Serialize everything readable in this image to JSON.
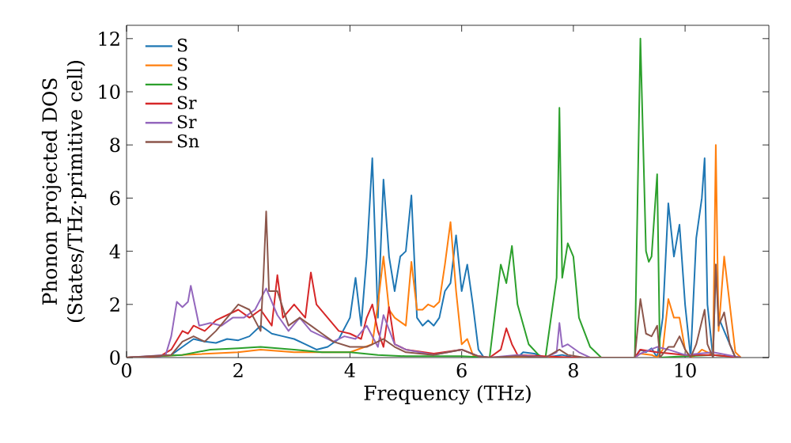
{
  "chart_data": {
    "type": "line",
    "xlabel": "Frequency (THz)",
    "ylabel": "Phonon projected DOS\n(States/THz·primitive cell)",
    "xlim": [
      0,
      11.5
    ],
    "ylim": [
      0,
      12.5
    ],
    "xticks": [
      0,
      2,
      4,
      6,
      8,
      10
    ],
    "yticks": [
      0,
      2,
      4,
      6,
      8,
      10,
      12
    ],
    "grid": false,
    "legend": "top left",
    "series": [
      {
        "name": "S",
        "color": "#1f77b4",
        "x": [
          0,
          0.5,
          0.8,
          1.0,
          1.2,
          1.4,
          1.6,
          1.8,
          2.0,
          2.2,
          2.4,
          2.6,
          2.8,
          3.0,
          3.2,
          3.4,
          3.6,
          3.8,
          4.0,
          4.1,
          4.2,
          4.3,
          4.4,
          4.5,
          4.6,
          4.7,
          4.8,
          4.9,
          5.0,
          5.1,
          5.2,
          5.3,
          5.4,
          5.5,
          5.6,
          5.7,
          5.8,
          5.9,
          6.0,
          6.1,
          6.2,
          6.3,
          6.4,
          7.0,
          7.1,
          7.3,
          7.5,
          7.8,
          8.0,
          9.1,
          9.2,
          9.3,
          9.4,
          9.5,
          9.6,
          9.7,
          9.8,
          9.9,
          10.0,
          10.1,
          10.2,
          10.3,
          10.35,
          10.4,
          10.5,
          10.55,
          10.6,
          10.7,
          10.8,
          10.9,
          11.0
        ],
        "values": [
          0,
          0.02,
          0.1,
          0.4,
          0.7,
          0.6,
          0.55,
          0.7,
          0.65,
          0.8,
          1.2,
          0.9,
          0.8,
          0.7,
          0.5,
          0.3,
          0.4,
          0.7,
          1.5,
          3.0,
          1.2,
          3.8,
          7.5,
          1.5,
          6.7,
          3.8,
          2.5,
          3.8,
          4.0,
          6.1,
          1.5,
          1.2,
          1.4,
          1.2,
          1.5,
          2.5,
          2.8,
          4.6,
          2.5,
          3.5,
          2.0,
          0.3,
          0,
          0,
          0.2,
          0.15,
          0,
          0.1,
          0,
          0,
          0.3,
          0.2,
          0.35,
          0,
          1.5,
          5.8,
          3.8,
          5.0,
          2.0,
          0,
          4.5,
          6.0,
          7.5,
          2.0,
          0,
          3.5,
          1.5,
          1.0,
          0.5,
          0,
          0
        ]
      },
      {
        "name": "S",
        "color": "#ff7f0e",
        "x": [
          0,
          1,
          2,
          2.4,
          3,
          4,
          4.4,
          4.5,
          4.6,
          4.7,
          4.8,
          5.0,
          5.1,
          5.2,
          5.3,
          5.4,
          5.5,
          5.6,
          5.7,
          5.8,
          5.9,
          6.0,
          6.1,
          6.2,
          6.3,
          9.1,
          9.2,
          9.4,
          9.5,
          9.6,
          9.7,
          9.8,
          9.9,
          10.0,
          10.1,
          10.2,
          10.3,
          10.4,
          10.5,
          10.55,
          10.6,
          10.7,
          10.8,
          10.9,
          11.0
        ],
        "values": [
          0,
          0.1,
          0.2,
          0.3,
          0.2,
          0.2,
          0.5,
          2.0,
          3.8,
          1.8,
          1.5,
          1.2,
          3.6,
          1.8,
          1.8,
          2.0,
          1.9,
          2.1,
          3.5,
          5.1,
          2.5,
          0.5,
          0.7,
          0.1,
          0,
          0,
          0.15,
          0.1,
          0,
          0.3,
          2.2,
          1.5,
          1.5,
          0.3,
          0,
          0.1,
          0.3,
          0.2,
          0.1,
          8.0,
          1.0,
          3.8,
          2.0,
          0.2,
          0
        ]
      },
      {
        "name": "S",
        "color": "#2ca02c",
        "x": [
          0,
          1,
          1.5,
          2,
          2.4,
          3,
          3.5,
          4,
          4.5,
          5.0,
          6.0,
          6.5,
          6.7,
          6.8,
          6.9,
          7.0,
          7.2,
          7.4,
          7.5,
          7.7,
          7.75,
          7.8,
          7.9,
          8.0,
          8.1,
          8.3,
          8.5,
          9.1,
          9.2,
          9.3,
          9.35,
          9.4,
          9.5,
          9.55,
          10.0,
          10.5,
          11.0
        ],
        "values": [
          0,
          0.1,
          0.3,
          0.35,
          0.4,
          0.3,
          0.2,
          0.2,
          0.1,
          0.05,
          0.05,
          0,
          3.5,
          2.8,
          4.2,
          2.0,
          0.5,
          0.05,
          0,
          3.0,
          9.4,
          3.0,
          4.3,
          3.8,
          1.5,
          0.4,
          0,
          0,
          12.0,
          4.0,
          3.6,
          3.8,
          6.9,
          0,
          0.05,
          0.1,
          0
        ]
      },
      {
        "name": "Sr",
        "color": "#d62728",
        "x": [
          0,
          0.6,
          0.8,
          1.0,
          1.1,
          1.2,
          1.4,
          1.6,
          1.8,
          2.0,
          2.2,
          2.4,
          2.6,
          2.7,
          2.8,
          3.0,
          3.2,
          3.3,
          3.4,
          3.6,
          3.8,
          4.0,
          4.2,
          4.3,
          4.4,
          4.5,
          4.6,
          4.7,
          4.8,
          5.0,
          5.5,
          6.0,
          6.3,
          6.5,
          6.7,
          6.8,
          6.9,
          7.0,
          7.5,
          8.0,
          9.1,
          9.2,
          9.5,
          10,
          10.5,
          11.0
        ],
        "values": [
          0,
          0.05,
          0.3,
          1.0,
          0.9,
          1.2,
          1.0,
          1.4,
          1.6,
          1.8,
          1.5,
          1.8,
          1.2,
          3.1,
          1.5,
          2.0,
          1.5,
          3.2,
          2.0,
          1.5,
          1.0,
          0.9,
          0.7,
          1.5,
          2.0,
          1.0,
          0.4,
          1.9,
          0.5,
          0.3,
          0.15,
          0.3,
          0.05,
          0,
          0.3,
          1.1,
          0.5,
          0.1,
          0.05,
          0,
          0,
          0.3,
          0.2,
          0.1,
          0.1,
          0
        ]
      },
      {
        "name": "Sr",
        "color": "#9467bd",
        "x": [
          0,
          0.7,
          0.8,
          0.9,
          1.0,
          1.1,
          1.15,
          1.3,
          1.5,
          1.7,
          1.9,
          2.1,
          2.3,
          2.5,
          2.7,
          2.9,
          3.1,
          3.3,
          3.5,
          3.7,
          3.9,
          4.1,
          4.3,
          4.5,
          4.6,
          4.8,
          5.0,
          5.5,
          6.0,
          6.3,
          6.5,
          7.0,
          7.5,
          7.7,
          7.75,
          7.8,
          7.9,
          8.1,
          8.3,
          9.1,
          9.2,
          9.5,
          9.7,
          10.0,
          10.5,
          11.0
        ],
        "values": [
          0,
          0.1,
          0.8,
          2.1,
          1.9,
          2.1,
          2.7,
          1.2,
          1.3,
          1.2,
          1.5,
          1.5,
          1.8,
          2.6,
          1.6,
          1.0,
          1.5,
          1.0,
          0.8,
          0.6,
          0.8,
          0.7,
          1.2,
          0.4,
          1.6,
          0.5,
          0.3,
          0.1,
          0.3,
          0.05,
          0,
          0.1,
          0,
          0.2,
          1.3,
          0.4,
          0.5,
          0.2,
          0,
          0,
          0.15,
          0.4,
          0.3,
          0.1,
          0.2,
          0
        ]
      },
      {
        "name": "Sn",
        "color": "#8c564b",
        "x": [
          0,
          0.8,
          1.0,
          1.2,
          1.4,
          1.6,
          1.8,
          2.0,
          2.2,
          2.4,
          2.45,
          2.5,
          2.55,
          2.7,
          2.9,
          3.1,
          3.3,
          3.5,
          3.7,
          4.0,
          4.3,
          4.5,
          4.6,
          4.8,
          5.0,
          5.5,
          6.0,
          6.3,
          6.5,
          7.0,
          7.5,
          7.75,
          7.9,
          8.2,
          9.1,
          9.2,
          9.3,
          9.4,
          9.5,
          9.55,
          9.7,
          9.8,
          9.9,
          10.0,
          10.1,
          10.2,
          10.35,
          10.4,
          10.5,
          10.55,
          10.6,
          10.7,
          10.8,
          10.9,
          11.0
        ],
        "values": [
          0,
          0.1,
          0.6,
          0.8,
          0.6,
          1.0,
          1.5,
          2.0,
          1.8,
          1.0,
          3.0,
          5.5,
          2.5,
          2.5,
          1.2,
          1.5,
          1.2,
          0.9,
          0.6,
          0.4,
          0.4,
          0.6,
          0.7,
          0.4,
          0.2,
          0.1,
          0.3,
          0.05,
          0,
          0.05,
          0,
          0.3,
          0.1,
          0,
          0,
          2.2,
          0.9,
          0.8,
          1.2,
          0,
          0.4,
          0.4,
          0.8,
          0.3,
          0,
          0.5,
          1.8,
          0.5,
          0,
          3.5,
          1.2,
          1.7,
          0.5,
          0,
          0
        ]
      }
    ]
  }
}
